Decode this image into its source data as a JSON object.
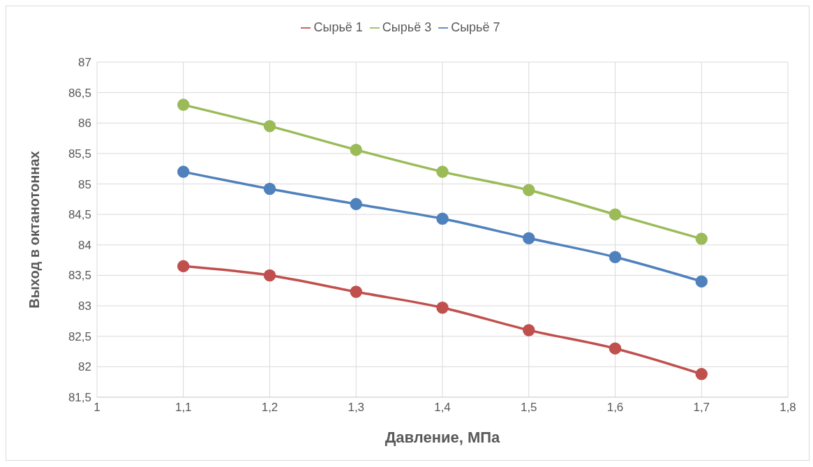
{
  "chart_data": {
    "type": "line",
    "xlabel": "Давление, МПа",
    "ylabel": "Выход  в октанотоннах",
    "x": [
      1.1,
      1.2,
      1.3,
      1.4,
      1.5,
      1.6,
      1.7
    ],
    "series": [
      {
        "name": "Сырьё 1",
        "color": "#c0504d",
        "values": [
          83.65,
          83.5,
          83.23,
          82.97,
          82.6,
          82.3,
          81.88
        ]
      },
      {
        "name": "Сырьё 3",
        "color": "#9bbb59",
        "values": [
          86.3,
          85.95,
          85.56,
          85.2,
          84.9,
          84.5,
          84.1
        ]
      },
      {
        "name": "Сырьё 7",
        "color": "#4f81bd",
        "values": [
          85.2,
          84.92,
          84.67,
          84.43,
          84.11,
          83.8,
          83.4
        ]
      }
    ],
    "xlim": [
      1,
      1.8
    ],
    "xticks": [
      {
        "value": 1,
        "label": "1"
      },
      {
        "value": 1.1,
        "label": "1,1"
      },
      {
        "value": 1.2,
        "label": "1,2"
      },
      {
        "value": 1.3,
        "label": "1,3"
      },
      {
        "value": 1.4,
        "label": "1,4"
      },
      {
        "value": 1.5,
        "label": "1,5"
      },
      {
        "value": 1.6,
        "label": "1,6"
      },
      {
        "value": 1.7,
        "label": "1,7"
      },
      {
        "value": 1.8,
        "label": "1,8"
      }
    ],
    "ylim": [
      81.5,
      87
    ],
    "yticks": [
      {
        "value": 81.5,
        "label": "81,5"
      },
      {
        "value": 82,
        "label": "82"
      },
      {
        "value": 82.5,
        "label": "82,5"
      },
      {
        "value": 83,
        "label": "83"
      },
      {
        "value": 83.5,
        "label": "83,5"
      },
      {
        "value": 84,
        "label": "84"
      },
      {
        "value": 84.5,
        "label": "84,5"
      },
      {
        "value": 85,
        "label": "85"
      },
      {
        "value": 85.5,
        "label": "85,5"
      },
      {
        "value": 86,
        "label": "86"
      },
      {
        "value": 86.5,
        "label": "86,5"
      },
      {
        "value": 87,
        "label": "87"
      }
    ],
    "grid": true,
    "legend": "top",
    "marker": "circle",
    "line_style": "solid"
  }
}
